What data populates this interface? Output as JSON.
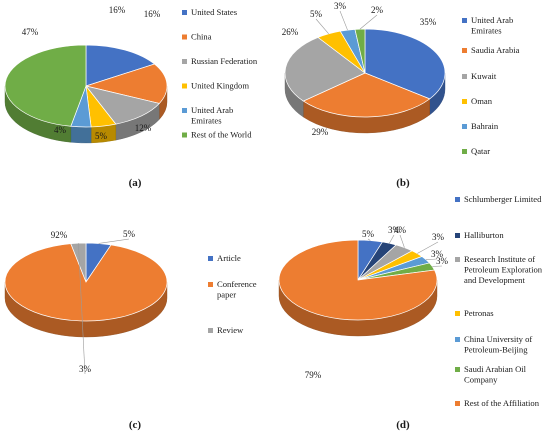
{
  "colors": {
    "blue": "#4472C4",
    "orange": "#ED7D31",
    "gray": "#A5A5A5",
    "yellow": "#FFC000",
    "lightblue": "#5B9BD5",
    "green": "#70AD47",
    "navy": "#264478"
  },
  "chart_data": [
    {
      "panel": "(a)",
      "type": "pie",
      "style": "3d",
      "legend_position": "right",
      "categories": [
        "United States",
        "China",
        "Russian Federation",
        "United Kingdom",
        "United Arab Emirates",
        "Rest of the World"
      ],
      "values": [
        16,
        16,
        12,
        5,
        4,
        47
      ],
      "data_labels": [
        "16%",
        "16%",
        "12%",
        "5%",
        "4%",
        "47%"
      ],
      "color_keys": [
        "blue",
        "orange",
        "gray",
        "yellow",
        "lightblue",
        "green"
      ]
    },
    {
      "panel": "(b)",
      "type": "pie",
      "style": "3d",
      "legend_position": "right",
      "categories": [
        "United Arab Emirates",
        "Saudia Arabia",
        "Kuwait",
        "Oman",
        "Bahrain",
        "Qatar"
      ],
      "values": [
        35,
        29,
        26,
        5,
        3,
        2
      ],
      "data_labels": [
        "35%",
        "29%",
        "26%",
        "5%",
        "3%",
        "2%"
      ],
      "color_keys": [
        "blue",
        "orange",
        "gray",
        "yellow",
        "lightblue",
        "green"
      ]
    },
    {
      "panel": "(c)",
      "type": "pie",
      "style": "3d",
      "legend_position": "right",
      "categories": [
        "Article",
        "Conference paper",
        "Review"
      ],
      "values": [
        5,
        92,
        3
      ],
      "data_labels": [
        "5%",
        "92%",
        "3%"
      ],
      "color_keys": [
        "blue",
        "orange",
        "gray"
      ]
    },
    {
      "panel": "(d)",
      "type": "pie",
      "style": "3d",
      "legend_position": "right",
      "categories": [
        "Schlumberger Limited",
        "Halliburton",
        "Research Institute of Petroleum Exploration and Development",
        "Petronas",
        "China University of Petroleum-Beijing",
        "Saudi Arabian Oil Company",
        "Rest of the Affiliation"
      ],
      "values": [
        5,
        3,
        4,
        3,
        3,
        3,
        79
      ],
      "data_labels": [
        "5%",
        "3%",
        "4%",
        "3%",
        "3%",
        "3%",
        "79%"
      ],
      "color_keys": [
        "blue",
        "navy",
        "gray",
        "yellow",
        "lightblue",
        "green",
        "orange"
      ]
    }
  ]
}
